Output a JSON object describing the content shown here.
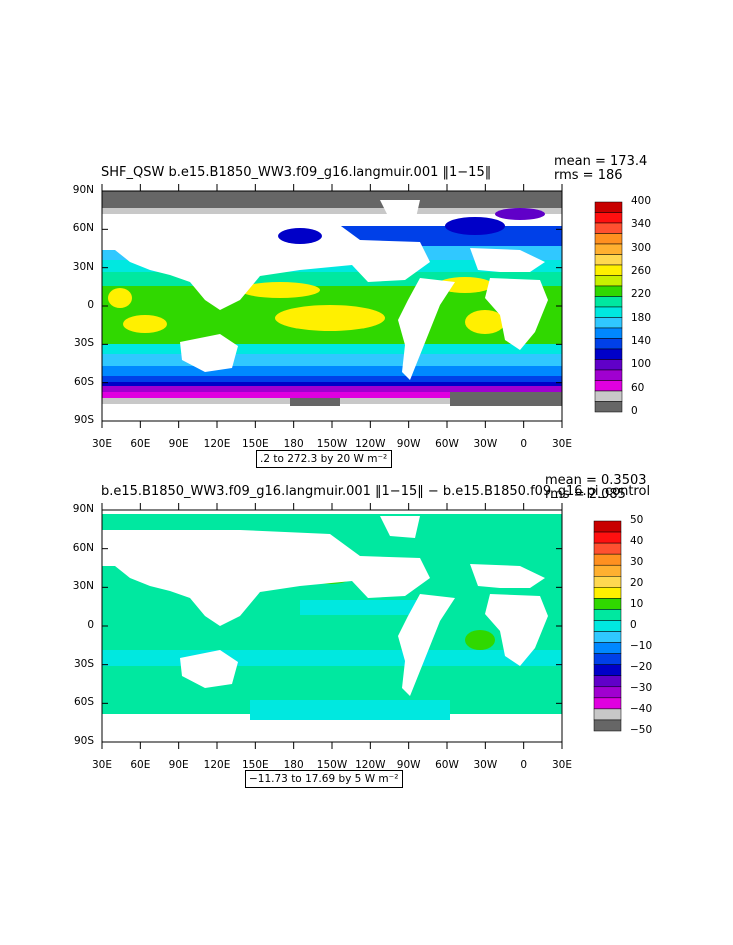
{
  "panel1": {
    "title": "SHF_QSW b.e15.B1850_WW3.f09_g16.langmuir.001 ‖1−15‖",
    "mean": "mean = 173.4",
    "rms": "rms = 186",
    "range": ".2 to 272.3 by 20  W m⁻²",
    "colorbar_labels": [
      "400",
      "340",
      "300",
      "260",
      "220",
      "180",
      "140",
      "100",
      "60",
      "0"
    ],
    "colorbar_colors": [
      "#c80000",
      "#ff1010",
      "#ff5030",
      "#ff9020",
      "#ffb030",
      "#ffd850",
      "#fff000",
      "#c8f000",
      "#30d800",
      "#00e8a0",
      "#00e8e0",
      "#30c8ff",
      "#0088ff",
      "#0040e8",
      "#0000c8",
      "#6000c8",
      "#a000d0",
      "#e000e0",
      "#c8c8c8",
      "#666666"
    ]
  },
  "panel2": {
    "title": "b.e15.B1850_WW3.f09_g16.langmuir.001 ‖1−15‖ − b.e15.B1850.f09_g16.pi_control",
    "mean": "mean = 0.3503",
    "rms": "rms = 2.085",
    "range": "−11.73 to 17.69 by 5  W m⁻²",
    "colorbar_labels": [
      "50",
      "40",
      "30",
      "20",
      "10",
      "0",
      "−10",
      "−20",
      "−30",
      "−40",
      "−50"
    ],
    "colorbar_colors": [
      "#c80000",
      "#ff1010",
      "#ff5030",
      "#ff9020",
      "#ffb030",
      "#ffd850",
      "#fff000",
      "#30d800",
      "#00e8a0",
      "#00e8e0",
      "#30c8ff",
      "#0088ff",
      "#0040e8",
      "#0000c8",
      "#6000c8",
      "#a000d0",
      "#e000e0",
      "#c8c8c8",
      "#666666"
    ]
  },
  "axes": {
    "lat_labels": [
      "90N",
      "60N",
      "30N",
      "0",
      "30S",
      "60S",
      "90S"
    ],
    "lon_labels": [
      "30E",
      "60E",
      "90E",
      "120E",
      "150E",
      "180",
      "150W",
      "120W",
      "90W",
      "60W",
      "30W",
      "0",
      "30E"
    ]
  },
  "colors": {
    "land": "#ffffff",
    "ice": "#666666",
    "ice_edge": "#c8c8c8"
  }
}
